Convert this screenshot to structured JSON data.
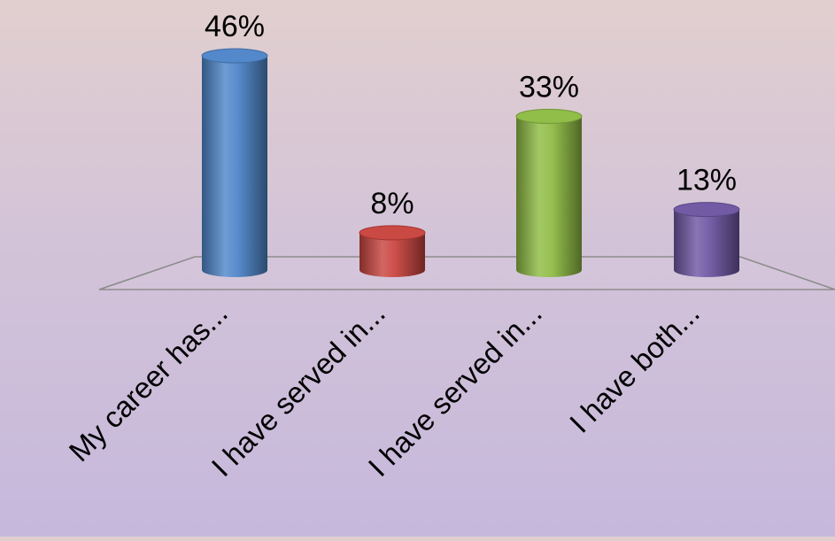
{
  "chart_data": {
    "type": "bar",
    "style": "3d-cylinder",
    "categories": [
      "My career has...",
      "I have served in...",
      "I have served in...",
      "I have both..."
    ],
    "values": [
      46,
      8,
      33,
      13
    ],
    "value_labels": [
      "46%",
      "8%",
      "33%",
      "13%"
    ],
    "unit": "%",
    "colors": [
      "#4f86c9",
      "#c9453f",
      "#8fbc45",
      "#6f57a3"
    ],
    "ylim": [
      0,
      50
    ],
    "grid": false,
    "legend": "none"
  }
}
